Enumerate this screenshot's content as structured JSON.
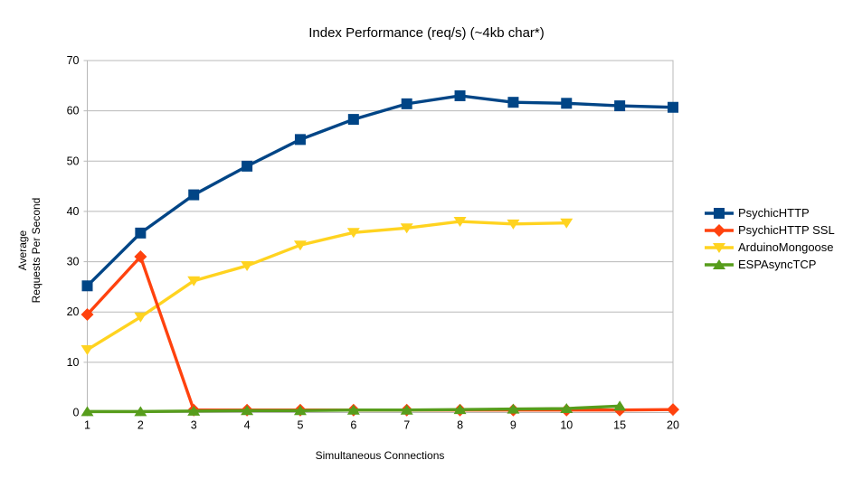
{
  "chart_data": {
    "type": "line",
    "title": "Index Performance (req/s) (~4kb char*)",
    "xlabel": "Simultaneous Connections",
    "ylabel_lines": [
      "Average",
      "Requests Per Second"
    ],
    "categories": [
      "1",
      "2",
      "3",
      "4",
      "5",
      "6",
      "7",
      "8",
      "9",
      "10",
      "15",
      "20"
    ],
    "ylim": [
      0,
      70
    ],
    "y_ticks": [
      0,
      10,
      20,
      30,
      40,
      50,
      60,
      70
    ],
    "grid": "horizontal",
    "legend_position": "right",
    "grid_color": "#b8b8b8",
    "series": [
      {
        "name": "PsychicHTTP",
        "color": "#004586",
        "marker": "square",
        "values": [
          25.2,
          35.7,
          43.3,
          49,
          54.3,
          58.3,
          61.4,
          63,
          61.7,
          61.5,
          61,
          60.7
        ]
      },
      {
        "name": "PsychicHTTP SSL",
        "color": "#FF420E",
        "marker": "diamond",
        "values": [
          19.5,
          31,
          0.5,
          0.5,
          0.5,
          0.5,
          0.5,
          0.5,
          0.5,
          0.5,
          0.5,
          0.6
        ]
      },
      {
        "name": "ArduinoMongoose",
        "color": "#FFD320",
        "marker": "triangle-down",
        "values": [
          12.5,
          19,
          26.2,
          29.2,
          33.3,
          35.8,
          36.7,
          38,
          37.5,
          37.7
        ]
      },
      {
        "name": "ESPAsyncTCP",
        "color": "#579D1C",
        "marker": "triangle-up",
        "values": [
          0.2,
          0.2,
          0.3,
          0.4,
          0.4,
          0.5,
          0.5,
          0.6,
          0.7,
          0.8,
          1.3
        ]
      }
    ],
    "draw_order": [
      2,
      0,
      1,
      3
    ]
  }
}
